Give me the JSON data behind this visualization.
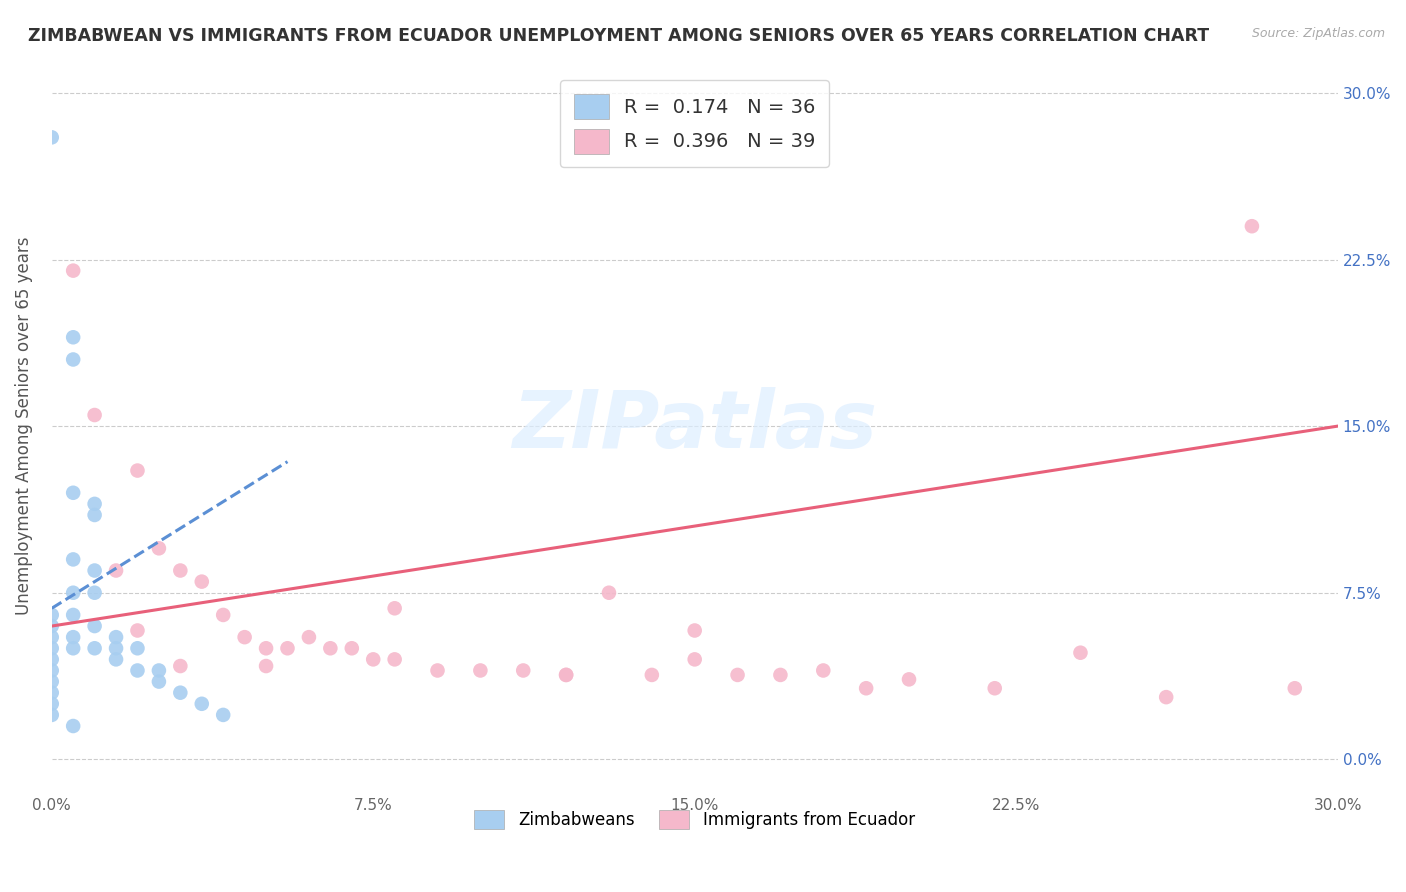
{
  "title": "ZIMBABWEAN VS IMMIGRANTS FROM ECUADOR UNEMPLOYMENT AMONG SENIORS OVER 65 YEARS CORRELATION CHART",
  "source": "Source: ZipAtlas.com",
  "ylabel": "Unemployment Among Seniors over 65 years",
  "watermark": "ZIPatlas",
  "legend_R1": "0.174",
  "legend_N1": "36",
  "legend_R2": "0.396",
  "legend_N2": "39",
  "blue_color": "#a8cef0",
  "pink_color": "#f5b8cb",
  "blue_line_color": "#5b8fd4",
  "pink_line_color": "#e8607a",
  "xmin": 0.0,
  "xmax": 0.3,
  "ymin": -0.015,
  "ymax": 0.315,
  "yticks": [
    0.0,
    0.075,
    0.15,
    0.225,
    0.3
  ],
  "xticks": [
    0.0,
    0.075,
    0.15,
    0.225,
    0.3
  ],
  "ytick_labels": [
    "0.0%",
    "7.5%",
    "15.0%",
    "22.5%",
    "30.0%"
  ],
  "xtick_labels": [
    "0.0%",
    "7.5%",
    "15.0%",
    "22.5%",
    "30.0%"
  ],
  "zimbabwe_x": [
    0.0,
    0.0,
    0.0,
    0.0,
    0.0,
    0.0,
    0.0,
    0.0,
    0.0,
    0.0,
    0.005,
    0.005,
    0.005,
    0.005,
    0.005,
    0.005,
    0.005,
    0.01,
    0.01,
    0.01,
    0.01,
    0.01,
    0.015,
    0.015,
    0.015,
    0.02,
    0.02,
    0.025,
    0.025,
    0.03,
    0.035,
    0.04,
    0.005,
    0.01,
    0.0,
    0.005
  ],
  "zimbabwe_y": [
    0.28,
    0.065,
    0.06,
    0.055,
    0.05,
    0.045,
    0.04,
    0.035,
    0.03,
    0.025,
    0.19,
    0.18,
    0.09,
    0.075,
    0.065,
    0.055,
    0.05,
    0.115,
    0.085,
    0.075,
    0.06,
    0.05,
    0.055,
    0.05,
    0.045,
    0.05,
    0.04,
    0.04,
    0.035,
    0.03,
    0.025,
    0.02,
    0.12,
    0.11,
    0.02,
    0.015
  ],
  "ecuador_x": [
    0.005,
    0.01,
    0.015,
    0.02,
    0.025,
    0.03,
    0.035,
    0.04,
    0.045,
    0.05,
    0.055,
    0.06,
    0.065,
    0.07,
    0.075,
    0.08,
    0.09,
    0.1,
    0.11,
    0.12,
    0.13,
    0.14,
    0.15,
    0.16,
    0.17,
    0.18,
    0.19,
    0.2,
    0.22,
    0.24,
    0.26,
    0.28,
    0.29,
    0.05,
    0.08,
    0.12,
    0.15,
    0.02,
    0.03
  ],
  "ecuador_y": [
    0.22,
    0.155,
    0.085,
    0.13,
    0.095,
    0.085,
    0.08,
    0.065,
    0.055,
    0.05,
    0.05,
    0.055,
    0.05,
    0.05,
    0.045,
    0.045,
    0.04,
    0.04,
    0.04,
    0.038,
    0.075,
    0.038,
    0.045,
    0.038,
    0.038,
    0.04,
    0.032,
    0.036,
    0.032,
    0.048,
    0.028,
    0.24,
    0.032,
    0.042,
    0.068,
    0.038,
    0.058,
    0.058,
    0.042
  ],
  "blue_line_x": [
    0.0,
    0.055
  ],
  "blue_line_y_intercept": 0.068,
  "blue_line_slope": 1.2,
  "pink_line_x": [
    0.0,
    0.3
  ],
  "pink_line_y_intercept": 0.06,
  "pink_line_slope": 0.3
}
